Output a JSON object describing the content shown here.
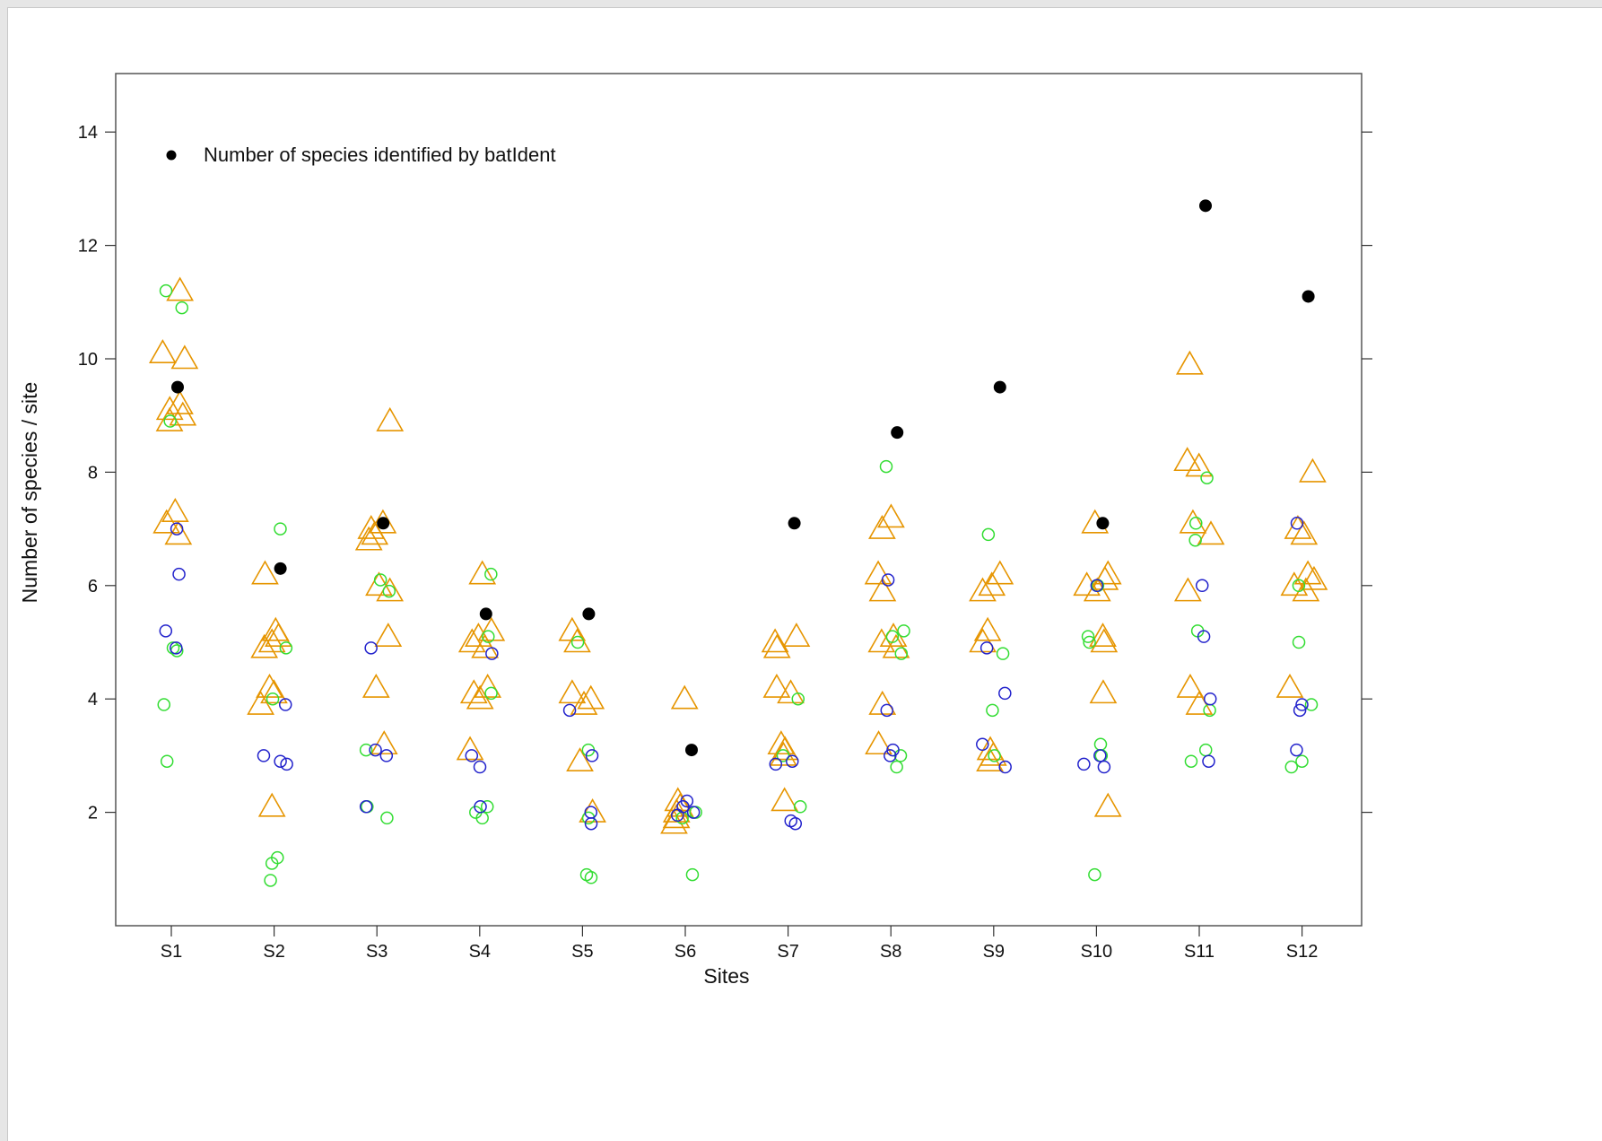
{
  "chart_data": {
    "type": "scatter",
    "title": "",
    "xlabel": "Sites",
    "ylabel": "Number of species / site",
    "categories": [
      "S1",
      "S2",
      "S3",
      "S4",
      "S5",
      "S6",
      "S7",
      "S8",
      "S9",
      "S10",
      "S11",
      "S12"
    ],
    "yticks": [
      2,
      4,
      6,
      8,
      10,
      12,
      14
    ],
    "ylim": [
      0,
      15
    ],
    "grid": false,
    "legend_position": "top-left",
    "colors": {
      "batident": "#000000",
      "triangles": "#e69500",
      "green_circles": "#33dd33",
      "blue_circles": "#2222cc"
    },
    "series": [
      {
        "name": "Number of species identified by batIdent",
        "marker": "filled-circle",
        "values": [
          9.5,
          6.3,
          7.1,
          5.5,
          5.5,
          3.1,
          7.1,
          8.7,
          9.5,
          7.1,
          12.7,
          11.1
        ]
      },
      {
        "marker": "open-triangle",
        "points": [
          [
            1,
            11.2
          ],
          [
            1,
            10.1
          ],
          [
            1,
            10.0
          ],
          [
            1,
            9.2
          ],
          [
            1,
            9.1
          ],
          [
            1,
            9.0
          ],
          [
            1,
            8.9
          ],
          [
            1,
            7.3
          ],
          [
            1,
            7.1
          ],
          [
            1,
            6.9
          ],
          [
            2,
            5.2
          ],
          [
            2,
            5.1
          ],
          [
            2,
            5.0
          ],
          [
            2,
            4.9
          ],
          [
            2,
            4.2
          ],
          [
            2,
            4.1
          ],
          [
            2,
            3.9
          ],
          [
            2,
            6.2
          ],
          [
            2,
            2.1
          ],
          [
            3,
            8.9
          ],
          [
            3,
            7.1
          ],
          [
            3,
            7.0
          ],
          [
            3,
            6.9
          ],
          [
            3,
            6.8
          ],
          [
            3,
            6.0
          ],
          [
            3,
            5.9
          ],
          [
            3,
            5.1
          ],
          [
            3,
            4.2
          ],
          [
            3,
            3.2
          ],
          [
            4,
            6.2
          ],
          [
            4,
            5.2
          ],
          [
            4,
            5.1
          ],
          [
            4,
            5.0
          ],
          [
            4,
            4.9
          ],
          [
            4,
            4.2
          ],
          [
            4,
            4.1
          ],
          [
            4,
            4.0
          ],
          [
            4,
            3.1
          ],
          [
            5,
            5.2
          ],
          [
            5,
            5.0
          ],
          [
            5,
            4.1
          ],
          [
            5,
            4.0
          ],
          [
            5,
            3.9
          ],
          [
            5,
            2.9
          ],
          [
            5,
            2.0
          ],
          [
            6,
            4.0
          ],
          [
            6,
            2.2
          ],
          [
            6,
            2.1
          ],
          [
            6,
            2.0
          ],
          [
            6,
            1.9
          ],
          [
            6,
            1.8
          ],
          [
            7,
            5.1
          ],
          [
            7,
            5.0
          ],
          [
            7,
            4.9
          ],
          [
            7,
            4.2
          ],
          [
            7,
            4.1
          ],
          [
            7,
            3.2
          ],
          [
            7,
            3.1
          ],
          [
            7,
            3.0
          ],
          [
            7,
            2.2
          ],
          [
            8,
            7.2
          ],
          [
            8,
            7.0
          ],
          [
            8,
            6.2
          ],
          [
            8,
            5.9
          ],
          [
            8,
            5.1
          ],
          [
            8,
            5.0
          ],
          [
            8,
            4.9
          ],
          [
            8,
            3.9
          ],
          [
            8,
            3.2
          ],
          [
            9,
            6.2
          ],
          [
            9,
            6.0
          ],
          [
            9,
            5.9
          ],
          [
            9,
            5.2
          ],
          [
            9,
            5.0
          ],
          [
            9,
            3.1
          ],
          [
            9,
            3.0
          ],
          [
            9,
            2.9
          ],
          [
            10,
            7.1
          ],
          [
            10,
            6.2
          ],
          [
            10,
            6.1
          ],
          [
            10,
            6.0
          ],
          [
            10,
            5.9
          ],
          [
            10,
            5.1
          ],
          [
            10,
            5.0
          ],
          [
            10,
            4.1
          ],
          [
            10,
            2.1
          ],
          [
            11,
            9.9
          ],
          [
            11,
            8.2
          ],
          [
            11,
            8.1
          ],
          [
            11,
            7.1
          ],
          [
            11,
            6.9
          ],
          [
            11,
            5.9
          ],
          [
            11,
            4.2
          ],
          [
            11,
            3.9
          ],
          [
            12,
            8.0
          ],
          [
            12,
            7.0
          ],
          [
            12,
            6.9
          ],
          [
            12,
            6.2
          ],
          [
            12,
            6.1
          ],
          [
            12,
            6.0
          ],
          [
            12,
            5.9
          ],
          [
            12,
            4.2
          ]
        ]
      },
      {
        "marker": "open-circle-green",
        "points": [
          [
            1,
            11.2
          ],
          [
            1,
            10.9
          ],
          [
            1,
            8.9
          ],
          [
            1,
            4.9
          ],
          [
            1,
            4.85
          ],
          [
            1,
            3.9
          ],
          [
            1,
            2.9
          ],
          [
            2,
            7.0
          ],
          [
            2,
            4.9
          ],
          [
            2,
            4.0
          ],
          [
            2,
            1.2
          ],
          [
            2,
            1.1
          ],
          [
            2,
            0.8
          ],
          [
            3,
            6.1
          ],
          [
            3,
            5.9
          ],
          [
            3,
            3.1
          ],
          [
            3,
            2.1
          ],
          [
            3,
            1.9
          ],
          [
            4,
            6.2
          ],
          [
            4,
            5.1
          ],
          [
            4,
            4.1
          ],
          [
            4,
            2.1
          ],
          [
            4,
            2.0
          ],
          [
            4,
            1.9
          ],
          [
            5,
            5.0
          ],
          [
            5,
            3.1
          ],
          [
            5,
            1.9
          ],
          [
            5,
            0.9
          ],
          [
            5,
            0.85
          ],
          [
            6,
            2.0
          ],
          [
            6,
            1.9
          ],
          [
            6,
            0.9
          ],
          [
            7,
            4.0
          ],
          [
            7,
            3.0
          ],
          [
            7,
            2.1
          ],
          [
            8,
            8.1
          ],
          [
            8,
            5.2
          ],
          [
            8,
            5.1
          ],
          [
            8,
            4.8
          ],
          [
            8,
            3.0
          ],
          [
            8,
            2.8
          ],
          [
            9,
            6.9
          ],
          [
            9,
            4.8
          ],
          [
            9,
            3.8
          ],
          [
            9,
            3.0
          ],
          [
            10,
            6.0
          ],
          [
            10,
            5.1
          ],
          [
            10,
            5.0
          ],
          [
            10,
            3.2
          ],
          [
            10,
            3.0
          ],
          [
            10,
            0.9
          ],
          [
            11,
            7.9
          ],
          [
            11,
            7.1
          ],
          [
            11,
            6.8
          ],
          [
            11,
            5.2
          ],
          [
            11,
            3.8
          ],
          [
            11,
            3.1
          ],
          [
            11,
            2.9
          ],
          [
            12,
            6.0
          ],
          [
            12,
            5.0
          ],
          [
            12,
            3.9
          ],
          [
            12,
            2.9
          ],
          [
            12,
            2.8
          ]
        ]
      },
      {
        "marker": "open-circle-blue",
        "points": [
          [
            1,
            7.0
          ],
          [
            1,
            6.2
          ],
          [
            1,
            5.2
          ],
          [
            1,
            4.9
          ],
          [
            2,
            3.9
          ],
          [
            2,
            3.0
          ],
          [
            2,
            2.9
          ],
          [
            2,
            2.85
          ],
          [
            3,
            3.1
          ],
          [
            3,
            3.0
          ],
          [
            3,
            2.1
          ],
          [
            3,
            4.9
          ],
          [
            4,
            4.8
          ],
          [
            4,
            3.0
          ],
          [
            4,
            2.8
          ],
          [
            4,
            2.1
          ],
          [
            5,
            3.8
          ],
          [
            5,
            3.0
          ],
          [
            5,
            2.0
          ],
          [
            5,
            1.8
          ],
          [
            6,
            2.2
          ],
          [
            6,
            2.1
          ],
          [
            6,
            2.0
          ],
          [
            6,
            1.95
          ],
          [
            7,
            2.9
          ],
          [
            7,
            2.85
          ],
          [
            7,
            1.85
          ],
          [
            7,
            1.8
          ],
          [
            8,
            6.1
          ],
          [
            8,
            3.8
          ],
          [
            8,
            3.1
          ],
          [
            8,
            3.0
          ],
          [
            9,
            4.9
          ],
          [
            9,
            4.1
          ],
          [
            9,
            3.2
          ],
          [
            9,
            2.8
          ],
          [
            10,
            6.0
          ],
          [
            10,
            3.0
          ],
          [
            10,
            2.85
          ],
          [
            10,
            2.8
          ],
          [
            11,
            6.0
          ],
          [
            11,
            5.1
          ],
          [
            11,
            4.0
          ],
          [
            11,
            2.9
          ],
          [
            12,
            7.1
          ],
          [
            12,
            3.9
          ],
          [
            12,
            3.8
          ],
          [
            12,
            3.1
          ]
        ]
      }
    ]
  }
}
